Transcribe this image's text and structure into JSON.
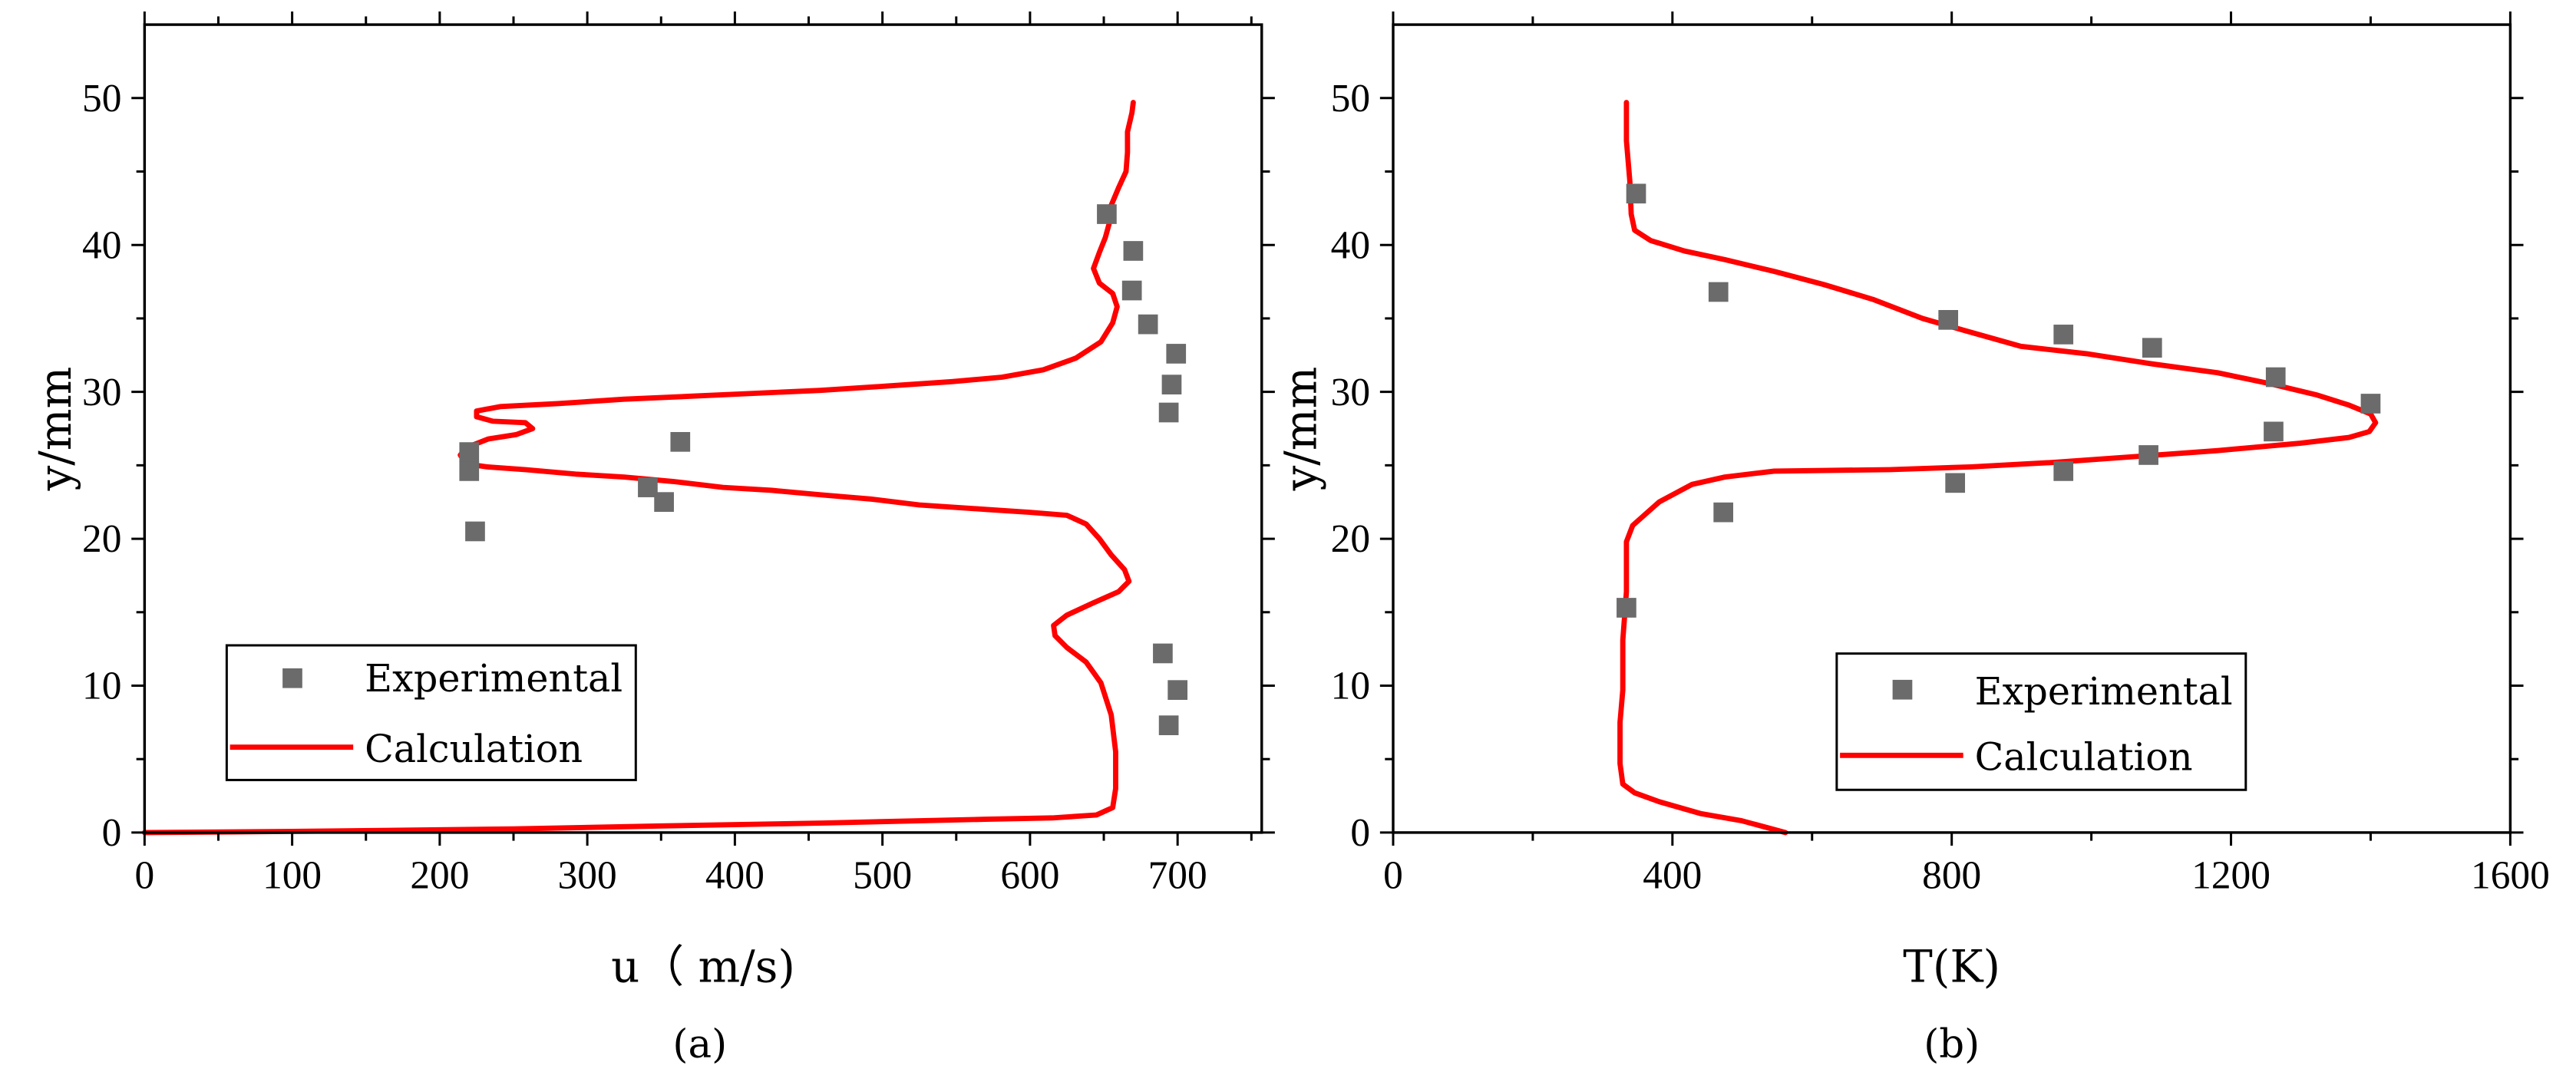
{
  "chart_data": [
    {
      "type": "line",
      "panel": "(a)",
      "xlabel": "u（ m/s)",
      "ylabel": "y/mm",
      "xlim": [
        0,
        757
      ],
      "ylim": [
        0,
        55
      ],
      "xticks": [
        0,
        100,
        200,
        300,
        400,
        500,
        600,
        700
      ],
      "xminor": 50,
      "yticks": [
        0,
        10,
        20,
        30,
        40,
        50
      ],
      "yminor": 5,
      "legend": "lower-left",
      "grid": false,
      "series": [
        {
          "name": "Experimental",
          "type": "scatter",
          "color": "#6b6b6b",
          "points": [
            [
              652,
              42.1
            ],
            [
              670,
              39.6
            ],
            [
              669,
              36.9
            ],
            [
              680,
              34.6
            ],
            [
              699,
              32.6
            ],
            [
              696,
              30.5
            ],
            [
              694,
              28.6
            ],
            [
              363,
              26.6
            ],
            [
              220,
              25.9
            ],
            [
              220,
              24.6
            ],
            [
              341,
              23.5
            ],
            [
              352,
              22.5
            ],
            [
              224,
              20.5
            ],
            [
              690,
              12.2
            ],
            [
              700,
              9.7
            ],
            [
              694,
              7.3
            ]
          ]
        },
        {
          "name": "Calculation",
          "type": "line",
          "color": "#ff0000",
          "points": [
            [
              0,
              0
            ],
            [
              60,
              0.05
            ],
            [
              125,
              0.1
            ],
            [
              250,
              0.25
            ],
            [
              350,
              0.45
            ],
            [
              460,
              0.65
            ],
            [
              570,
              0.9
            ],
            [
              615,
              1.0
            ],
            [
              645,
              1.2
            ],
            [
              656,
              1.7
            ],
            [
              658,
              3.0
            ],
            [
              658,
              5.5
            ],
            [
              655,
              8.0
            ],
            [
              648,
              10.2
            ],
            [
              638,
              11.6
            ],
            [
              625,
              12.6
            ],
            [
              617,
              13.4
            ],
            [
              616,
              14.1
            ],
            [
              625,
              14.8
            ],
            [
              642,
              15.6
            ],
            [
              660,
              16.4
            ],
            [
              667,
              17.1
            ],
            [
              664,
              17.9
            ],
            [
              655,
              18.9
            ],
            [
              647,
              20.0
            ],
            [
              638,
              21.0
            ],
            [
              625,
              21.6
            ],
            [
              600,
              21.8
            ],
            [
              570,
              22.0
            ],
            [
              525,
              22.3
            ],
            [
              492,
              22.7
            ],
            [
              458,
              23.0
            ],
            [
              425,
              23.3
            ],
            [
              392,
              23.5
            ],
            [
              358,
              23.9
            ],
            [
              325,
              24.2
            ],
            [
              292,
              24.4
            ],
            [
              258,
              24.7
            ],
            [
              232,
              24.9
            ],
            [
              218,
              25.1
            ],
            [
              214,
              25.7
            ],
            [
              218,
              26.2
            ],
            [
              233,
              26.8
            ],
            [
              252,
              27.1
            ],
            [
              263,
              27.5
            ],
            [
              258,
              27.9
            ],
            [
              236,
              28.0
            ],
            [
              225,
              28.3
            ],
            [
              225,
              28.7
            ],
            [
              241,
              29.0
            ],
            [
              280,
              29.2
            ],
            [
              325,
              29.5
            ],
            [
              370,
              29.7
            ],
            [
              414,
              29.9
            ],
            [
              458,
              30.1
            ],
            [
              503,
              30.4
            ],
            [
              547,
              30.7
            ],
            [
              581,
              31.0
            ],
            [
              609,
              31.5
            ],
            [
              631,
              32.3
            ],
            [
              648,
              33.4
            ],
            [
              656,
              34.7
            ],
            [
              659,
              35.8
            ],
            [
              656,
              36.7
            ],
            [
              647,
              37.4
            ],
            [
              643,
              38.4
            ],
            [
              647,
              39.5
            ],
            [
              651,
              40.5
            ],
            [
              654,
              41.6
            ],
            [
              655,
              42.7
            ],
            [
              660,
              43.9
            ],
            [
              665,
              45.0
            ],
            [
              666,
              46.3
            ],
            [
              666,
              47.7
            ],
            [
              669,
              49.0
            ],
            [
              670,
              49.7
            ]
          ]
        }
      ]
    },
    {
      "type": "line",
      "panel": "(b)",
      "xlabel": "T(K)",
      "ylabel": "y/mm",
      "xlim": [
        0,
        1600
      ],
      "ylim": [
        0,
        55
      ],
      "xticks": [
        0,
        400,
        800,
        1200,
        1600
      ],
      "xminor": 200,
      "yticks": [
        0,
        10,
        20,
        30,
        40,
        50
      ],
      "yminor": 5,
      "legend": "lower-center",
      "grid": false,
      "series": [
        {
          "name": "Experimental",
          "type": "scatter",
          "color": "#6b6b6b",
          "points": [
            [
              348,
              43.5
            ],
            [
              466,
              36.8
            ],
            [
              795,
              34.9
            ],
            [
              960,
              33.9
            ],
            [
              1087,
              33.0
            ],
            [
              1264,
              31.0
            ],
            [
              1400,
              29.2
            ],
            [
              1261,
              27.3
            ],
            [
              1082,
              25.7
            ],
            [
              960,
              24.6
            ],
            [
              805,
              23.8
            ],
            [
              473,
              21.8
            ],
            [
              334,
              15.3
            ]
          ]
        },
        {
          "name": "Calculation",
          "type": "line",
          "color": "#ff0000",
          "points": [
            [
              562,
              0
            ],
            [
              499,
              0.8
            ],
            [
              440,
              1.3
            ],
            [
              381,
              2.1
            ],
            [
              346,
              2.7
            ],
            [
              329,
              3.3
            ],
            [
              325,
              4.7
            ],
            [
              325,
              7.5
            ],
            [
              329,
              9.7
            ],
            [
              329,
              13.1
            ],
            [
              334,
              16.4
            ],
            [
              334,
              19.8
            ],
            [
              343,
              20.9
            ],
            [
              381,
              22.5
            ],
            [
              428,
              23.7
            ],
            [
              475,
              24.2
            ],
            [
              546,
              24.6
            ],
            [
              711,
              24.7
            ],
            [
              828,
              24.9
            ],
            [
              946,
              25.2
            ],
            [
              1064,
              25.6
            ],
            [
              1181,
              26.0
            ],
            [
              1299,
              26.5
            ],
            [
              1369,
              26.9
            ],
            [
              1398,
              27.3
            ],
            [
              1407,
              27.9
            ],
            [
              1400,
              28.5
            ],
            [
              1369,
              29.1
            ],
            [
              1322,
              29.8
            ],
            [
              1252,
              30.6
            ],
            [
              1181,
              31.3
            ],
            [
              1087,
              31.9
            ],
            [
              993,
              32.6
            ],
            [
              899,
              33.1
            ],
            [
              817,
              34.2
            ],
            [
              758,
              35.0
            ],
            [
              687,
              36.3
            ],
            [
              617,
              37.3
            ],
            [
              546,
              38.2
            ],
            [
              475,
              39.0
            ],
            [
              417,
              39.6
            ],
            [
              369,
              40.3
            ],
            [
              346,
              41.0
            ],
            [
              341,
              42.1
            ],
            [
              339,
              44.3
            ],
            [
              334,
              47.1
            ],
            [
              334,
              49.7
            ]
          ]
        }
      ]
    }
  ]
}
